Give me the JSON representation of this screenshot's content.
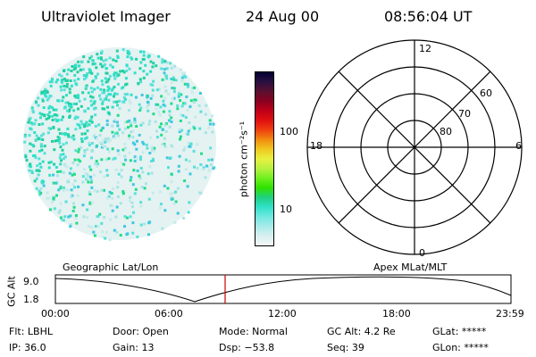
{
  "header": {
    "instrument": "Ultraviolet Imager",
    "date": "24 Aug 00",
    "time": "08:56:04 UT"
  },
  "image_panel": {
    "description_color_low": "#e4f2f2",
    "speckle_colors": [
      "#30e0c8",
      "#22d0a0",
      "#58e0d8",
      "#a8e4e4",
      "#c8eaea",
      "#22dd88",
      "#40c8e0"
    ]
  },
  "colorbar": {
    "unit_label": "photon cm⁻²s⁻¹",
    "ticks": [
      "100",
      "10"
    ],
    "colors": [
      "#000033",
      "#2a1040",
      "#5a1030",
      "#8a0020",
      "#c00018",
      "#e01010",
      "#f04010",
      "#f08c10",
      "#f0c820",
      "#e8f040",
      "#b8f040",
      "#70f020",
      "#30e000",
      "#20d080",
      "#30e0c8",
      "#70e8e0",
      "#a8eaea",
      "#d8f0f0",
      "#f2f6f6"
    ]
  },
  "polar_plot": {
    "mlt_labels": [
      "12",
      "18",
      "6",
      "0"
    ],
    "lat_labels": [
      "60",
      "70",
      "80"
    ]
  },
  "timeline": {
    "y_axis_label": "GC Alt",
    "y_ticks": [
      "9.0",
      "1.8"
    ],
    "left_title": "Geographic Lat/Lon",
    "right_title": "Apex MLat/MLT",
    "x_ticks": [
      "00:00",
      "06:00",
      "12:00",
      "18:00",
      "23:59"
    ],
    "current_time_marker": "08:56:04",
    "marker_color": "#cc0000"
  },
  "status": {
    "flt": "Flt: LBHL",
    "ip": "IP: 36.0",
    "door": "Door: Open",
    "gain": "Gain: 13",
    "mode": "Mode: Normal",
    "dsp": "Dsp:  −53.8",
    "gc_alt": "GC Alt: 4.2 Re",
    "seq": "Seq: 39",
    "glat": "GLat: *****",
    "glon": "GLon: *****"
  }
}
